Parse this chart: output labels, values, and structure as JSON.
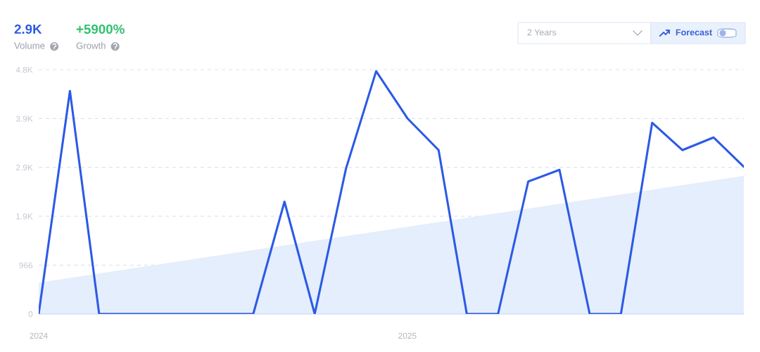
{
  "chart_data": {
    "type": "line",
    "annotations": [
      "2.9K",
      "Volume",
      "+5900%",
      "Growth",
      "2 Years",
      "Forecast"
    ],
    "x": [
      "2024-01",
      "2024-02",
      "2024-03",
      "2024-04",
      "2024-05",
      "2024-06",
      "2024-07",
      "2024-08",
      "2024-09",
      "2024-10",
      "2024-11",
      "2024-12",
      "2025-01",
      "2025-02",
      "2025-03",
      "2025-04",
      "2025-05",
      "2025-06",
      "2025-07",
      "2025-08",
      "2025-09",
      "2025-10",
      "2025-11",
      "2025-12"
    ],
    "series": [
      {
        "color": "#2c5ae5",
        "values": [
          0,
          4410,
          0,
          0,
          0,
          0,
          0,
          0,
          2220,
          0,
          2870,
          4800,
          3870,
          3240,
          0,
          0,
          2620,
          2850,
          0,
          0,
          3780,
          3240,
          3490,
          2910
        ]
      },
      {
        "type": "area",
        "color": "#e4eefc",
        "x": [
          "2024-01",
          "2025-12"
        ],
        "values": [
          620,
          2730
        ]
      }
    ],
    "xlim": [
      "2024-01",
      "2025-12"
    ],
    "xticks": [
      "2024",
      "2025"
    ],
    "ylim": [
      0,
      4830
    ],
    "yticks": [
      0,
      966,
      {
        "value": 1932,
        "label": "1.9K"
      },
      {
        "value": 2898,
        "label": "2.9K"
      },
      {
        "value": 3864,
        "label": "3.9K"
      },
      {
        "value": 4830,
        "label": "4.8K"
      }
    ],
    "grid": "y"
  }
}
